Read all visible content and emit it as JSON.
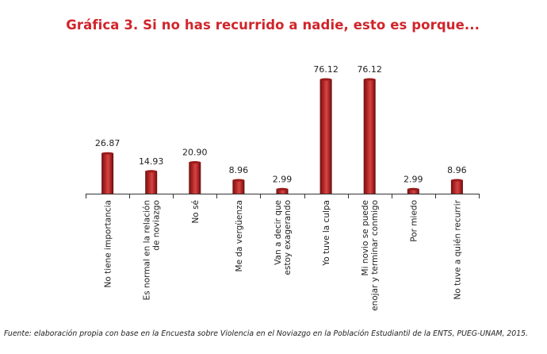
{
  "chart_data": {
    "type": "bar",
    "title": "Gráfica 3. Si no has recurrido a nadie, esto es porque...",
    "categories": [
      [
        "No tiene importancia"
      ],
      [
        "Es normal en la relación",
        "de noviazgo"
      ],
      [
        "No sé"
      ],
      [
        "Me da vergüenza"
      ],
      [
        "Van a decir que",
        "estoy exagerando"
      ],
      [
        "Yo tuve la culpa"
      ],
      [
        "Mi novio se puede",
        "enojar y terminar conmigo"
      ],
      [
        "Por miedo"
      ],
      [
        "No tuve a quién recurrir"
      ]
    ],
    "values": [
      26.87,
      14.93,
      20.9,
      8.96,
      2.99,
      76.12,
      76.12,
      2.99,
      8.96
    ],
    "value_labels": [
      "26.87",
      "14.93",
      "20.90",
      "8.96",
      "2.99",
      "76.12",
      "76.12",
      "2.99",
      "8.96"
    ],
    "ylim": [
      0,
      76.12
    ],
    "grid": false,
    "legend": "none",
    "xlabel": "",
    "ylabel": "",
    "colors": {
      "bar_dark": "#7a1414",
      "bar_mid": "#b22a2a",
      "bar_light": "#d84848",
      "title": "#d0252b",
      "axis": "#333333"
    }
  },
  "source": "Fuente: elaboración propia con base en la Encuesta sobre Violencia en el Noviazgo en la Población Estudiantil de la ENTS, PUEG-UNAM, 2015."
}
